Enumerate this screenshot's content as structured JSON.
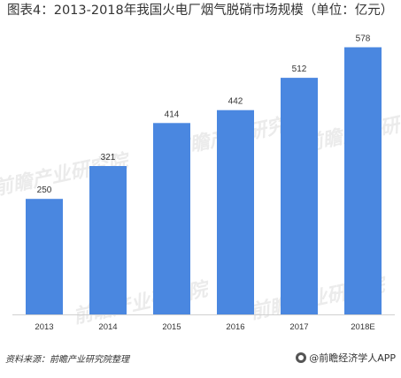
{
  "chart_data": {
    "type": "bar",
    "title": "图表4：2013-2018年我国火电厂烟气脱硝市场规模（单位：亿元）",
    "categories": [
      "2013",
      "2014",
      "2015",
      "2016",
      "2017",
      "2018E"
    ],
    "values": [
      250,
      321,
      414,
      442,
      512,
      578
    ],
    "xlabel": "",
    "ylabel": "",
    "ylim": [
      0,
      600
    ],
    "grid": false,
    "legend": "none",
    "bar_color": "#4a87e0"
  },
  "footer": {
    "source": "资料来源：前瞻产业研究院整理",
    "brand": "@前瞻经济学人APP"
  },
  "watermark": {
    "text": "前瞻产业研究院"
  }
}
